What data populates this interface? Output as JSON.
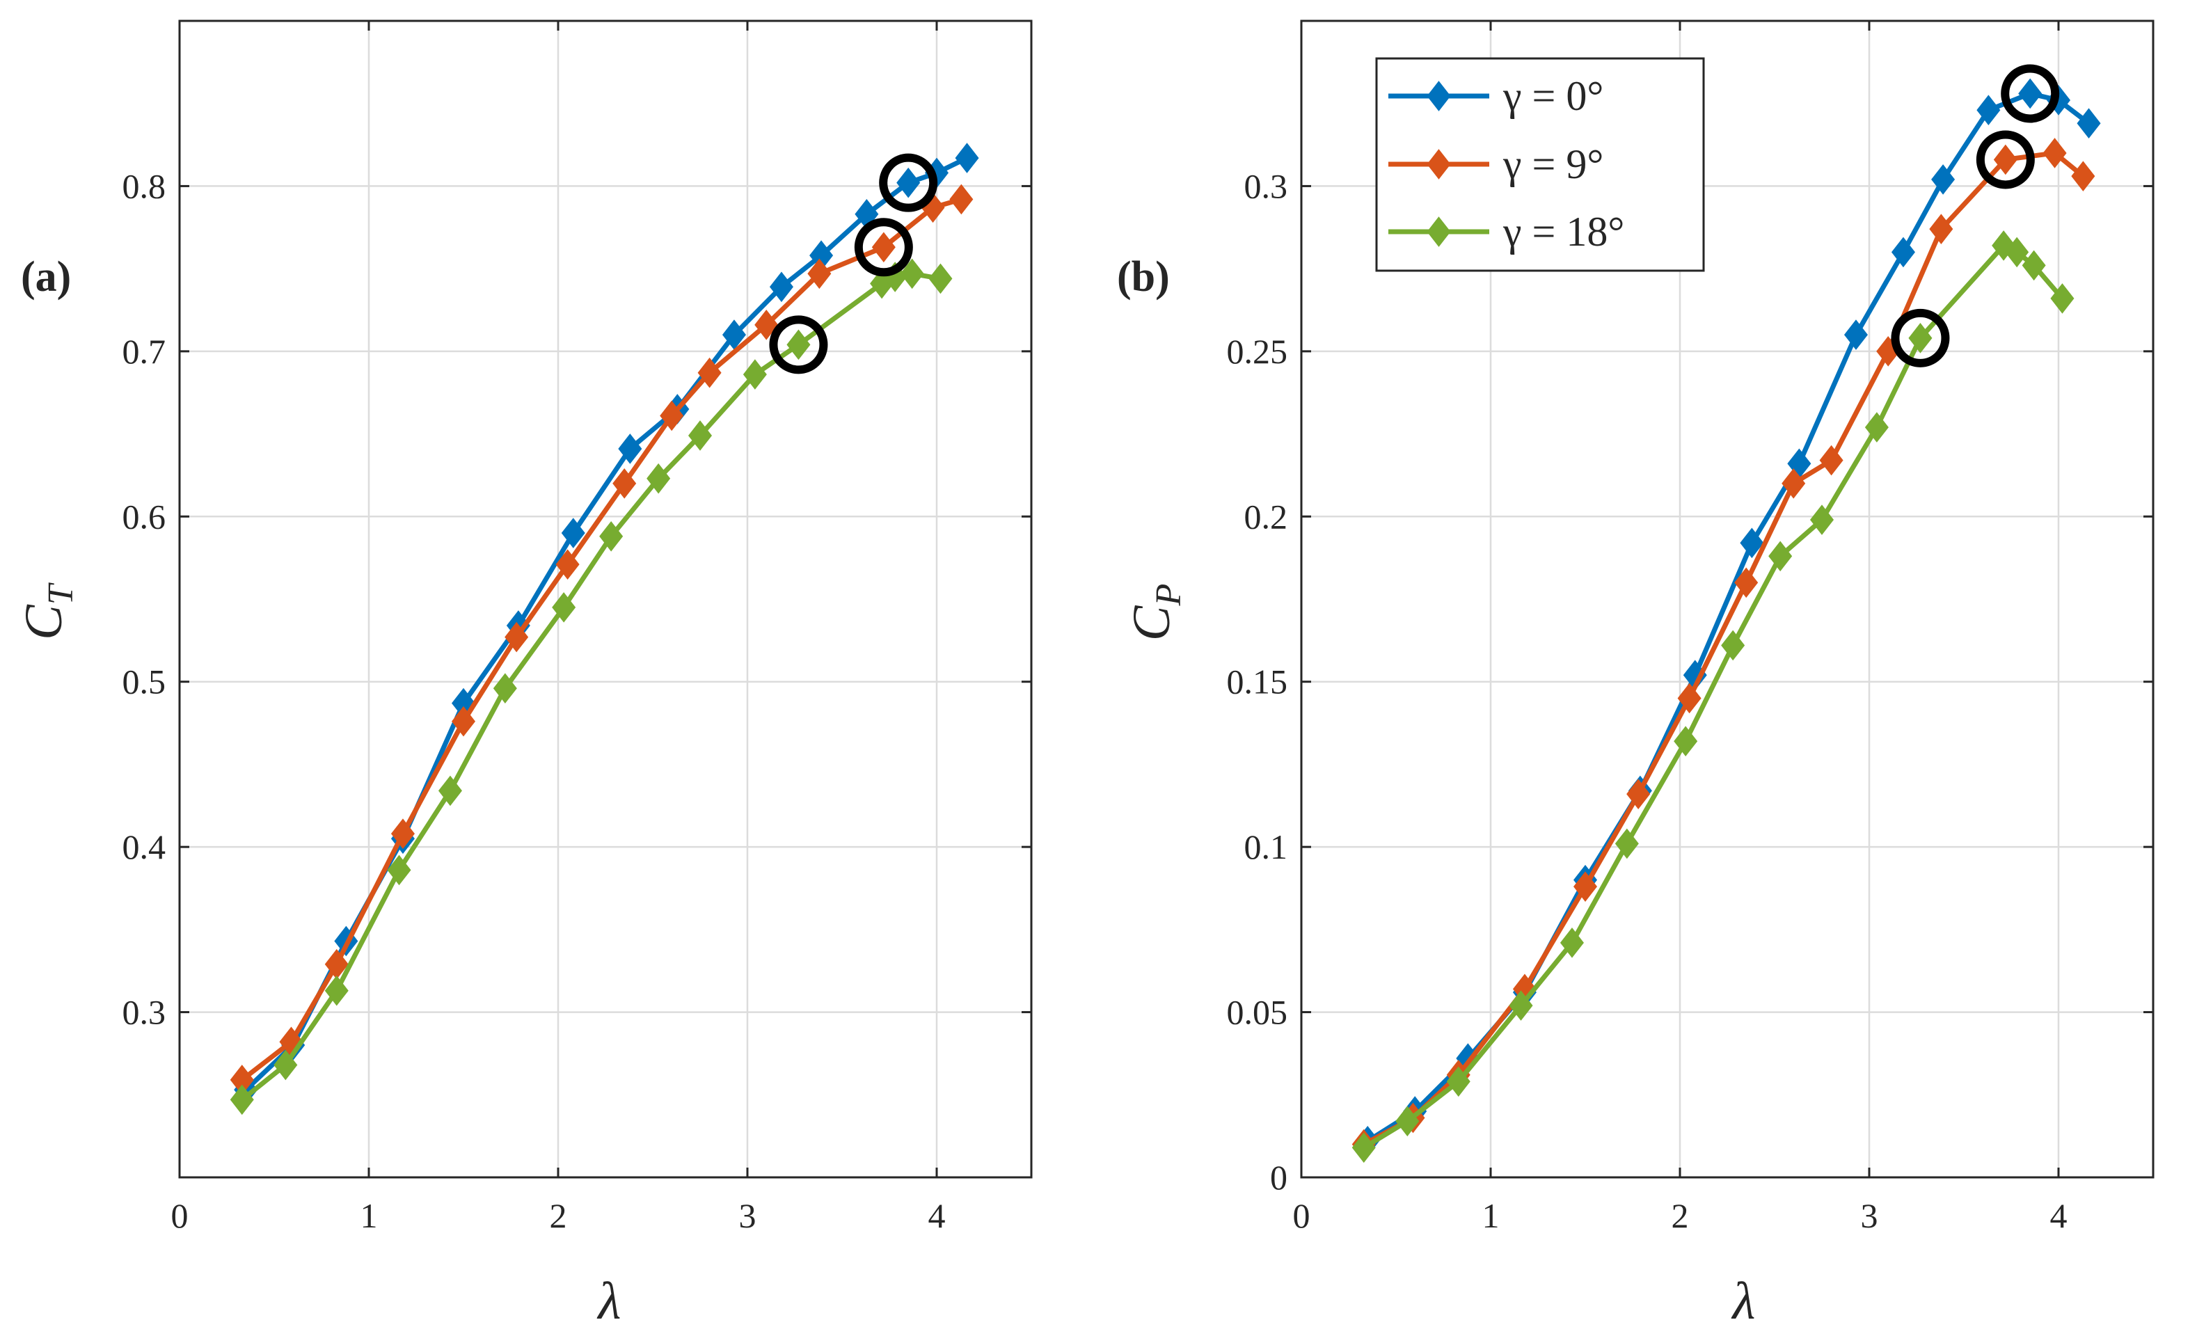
{
  "figure": {
    "legend_entries": [
      "γ = 0°",
      "γ = 9°",
      "γ = 18°"
    ]
  },
  "chart_data": [
    {
      "type": "line",
      "panel_label": "(a)",
      "xlabel": "λ",
      "ylabel_base": "C",
      "ylabel_sub": "T",
      "xlim": [
        0,
        4.5
      ],
      "ylim": [
        0.2,
        0.9
      ],
      "xticks": [
        0,
        1,
        2,
        3,
        4
      ],
      "xtick_labels": [
        "0",
        "1",
        "2",
        "3",
        "4"
      ],
      "yticks": [
        0.3,
        0.4,
        0.5,
        0.6,
        0.7,
        0.8
      ],
      "ytick_labels": [
        "0.3",
        "0.4",
        "0.5",
        "0.6",
        "0.7",
        "0.8"
      ],
      "grid": true,
      "series": [
        {
          "name": "γ = 0°",
          "color": "#0072BD",
          "x": [
            0.35,
            0.6,
            0.88,
            1.18,
            1.5,
            1.79,
            2.08,
            2.38,
            2.63,
            2.93,
            3.18,
            3.39,
            3.63,
            3.85,
            4.0,
            4.16
          ],
          "y": [
            0.253,
            0.28,
            0.343,
            0.405,
            0.487,
            0.534,
            0.59,
            0.641,
            0.665,
            0.71,
            0.739,
            0.758,
            0.783,
            0.802,
            0.808,
            0.817
          ],
          "highlight": {
            "x": 3.85,
            "y": 0.802
          }
        },
        {
          "name": "γ = 9°",
          "color": "#D95319",
          "x": [
            0.33,
            0.59,
            0.83,
            1.18,
            1.5,
            1.78,
            2.05,
            2.35,
            2.6,
            2.8,
            3.1,
            3.38,
            3.72,
            3.98,
            4.13
          ],
          "y": [
            0.259,
            0.282,
            0.329,
            0.408,
            0.476,
            0.527,
            0.571,
            0.62,
            0.661,
            0.687,
            0.716,
            0.747,
            0.763,
            0.787,
            0.792
          ],
          "highlight": {
            "x": 3.72,
            "y": 0.763
          }
        },
        {
          "name": "γ = 18°",
          "color": "#77AC30",
          "x": [
            0.33,
            0.56,
            0.83,
            1.16,
            1.43,
            1.72,
            2.03,
            2.28,
            2.53,
            2.75,
            3.04,
            3.27,
            3.71,
            3.78,
            3.87,
            4.02
          ],
          "y": [
            0.247,
            0.268,
            0.313,
            0.386,
            0.434,
            0.496,
            0.545,
            0.588,
            0.623,
            0.649,
            0.686,
            0.704,
            0.741,
            0.745,
            0.747,
            0.744
          ],
          "highlight": {
            "x": 3.27,
            "y": 0.704
          }
        }
      ]
    },
    {
      "type": "line",
      "panel_label": "(b)",
      "xlabel": "λ",
      "ylabel_base": "C",
      "ylabel_sub": "P",
      "xlim": [
        0,
        4.5
      ],
      "ylim": [
        0,
        0.35
      ],
      "xticks": [
        0,
        1,
        2,
        3,
        4
      ],
      "xtick_labels": [
        "0",
        "1",
        "2",
        "3",
        "4"
      ],
      "yticks": [
        0,
        0.05,
        0.1,
        0.15,
        0.2,
        0.25,
        0.3
      ],
      "ytick_labels": [
        "0",
        "0.05",
        "0.1",
        "0.15",
        "0.2",
        "0.25",
        "0.3"
      ],
      "grid": true,
      "legend_position": "top-left",
      "series": [
        {
          "name": "γ = 0°",
          "color": "#0072BD",
          "x": [
            0.35,
            0.6,
            0.88,
            1.18,
            1.5,
            1.79,
            2.08,
            2.38,
            2.63,
            2.93,
            3.18,
            3.39,
            3.63,
            3.85,
            4.0,
            4.16
          ],
          "y": [
            0.011,
            0.02,
            0.036,
            0.056,
            0.09,
            0.117,
            0.152,
            0.192,
            0.216,
            0.255,
            0.28,
            0.302,
            0.323,
            0.328,
            0.326,
            0.319
          ],
          "highlight": {
            "x": 3.85,
            "y": 0.328
          }
        },
        {
          "name": "γ = 9°",
          "color": "#D95319",
          "x": [
            0.33,
            0.59,
            0.83,
            1.18,
            1.5,
            1.78,
            2.05,
            2.35,
            2.6,
            2.8,
            3.1,
            3.38,
            3.72,
            3.98,
            4.13
          ],
          "y": [
            0.01,
            0.018,
            0.031,
            0.057,
            0.088,
            0.116,
            0.145,
            0.18,
            0.21,
            0.217,
            0.25,
            0.287,
            0.308,
            0.31,
            0.303
          ],
          "highlight": {
            "x": 3.72,
            "y": 0.308
          }
        },
        {
          "name": "γ = 18°",
          "color": "#77AC30",
          "x": [
            0.33,
            0.56,
            0.83,
            1.16,
            1.43,
            1.72,
            2.03,
            2.28,
            2.53,
            2.75,
            3.04,
            3.27,
            3.71,
            3.78,
            3.87,
            4.02
          ],
          "y": [
            0.009,
            0.017,
            0.029,
            0.052,
            0.071,
            0.101,
            0.132,
            0.161,
            0.188,
            0.199,
            0.227,
            0.254,
            0.282,
            0.28,
            0.276,
            0.266
          ],
          "highlight": {
            "x": 3.27,
            "y": 0.254
          }
        }
      ]
    }
  ]
}
